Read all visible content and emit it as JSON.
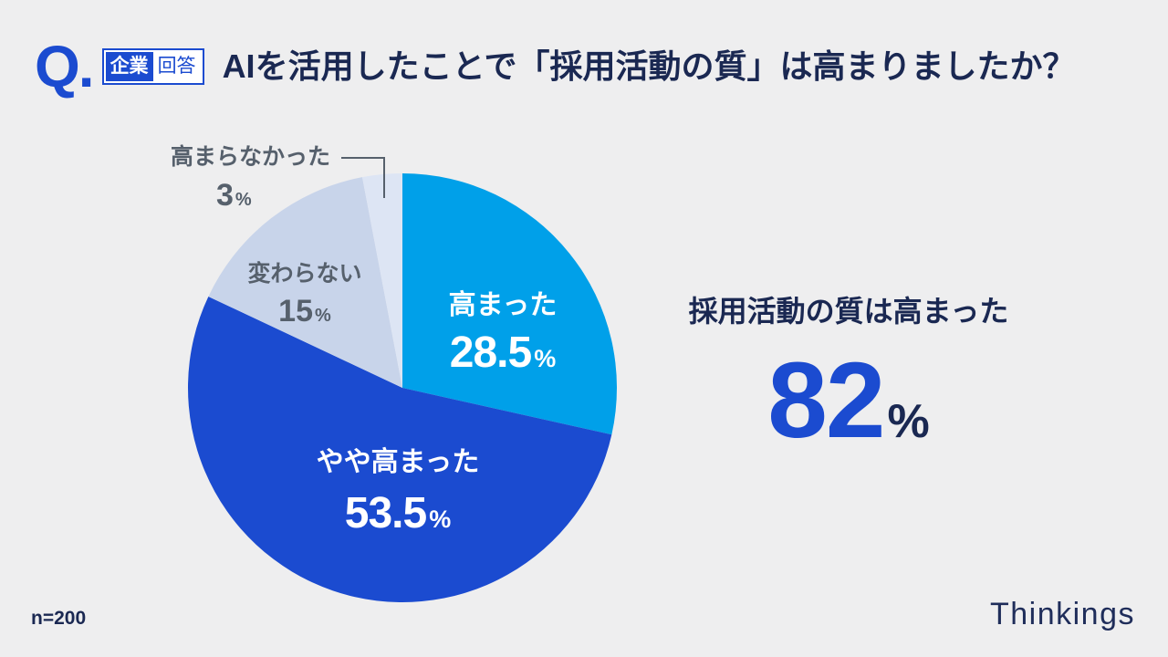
{
  "header": {
    "q_mark": "Q.",
    "badge": {
      "left": "企業",
      "right": "回答"
    }
  },
  "chart_data": {
    "type": "pie",
    "title": "AIを活用したことで「採用活動の質」は高まりましたか？",
    "categories": [
      "高まった",
      "やや高まった",
      "変わらない",
      "高まらなかった"
    ],
    "values": [
      28.5,
      53.5,
      15,
      3
    ],
    "unit": "%",
    "colors": [
      "#00a0e9",
      "#1b4bd0",
      "#c8d4ea",
      "#dde5f4"
    ]
  },
  "summary": {
    "label": "採用活動の質は高まった",
    "value": "82",
    "unit": "%"
  },
  "footer": {
    "sample_size": "n=200",
    "brand": "Thinkings"
  },
  "colors": {
    "accent": "#1b4bd0",
    "text": "#1a2852",
    "muted_text": "#56606c",
    "background": "#eeeeef"
  }
}
